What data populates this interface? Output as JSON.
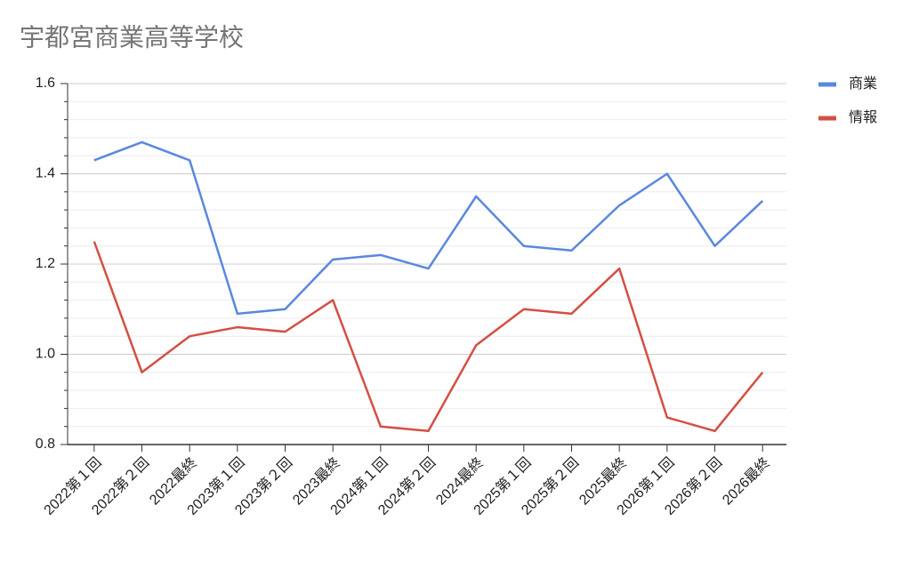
{
  "chart_data": {
    "type": "line",
    "title": "宇都宮商業高等学校",
    "categories": [
      "2022第１回",
      "2022第２回",
      "2022最終",
      "2023第１回",
      "2023第２回",
      "2023最終",
      "2024第１回",
      "2024第２回",
      "2024最終",
      "2025第１回",
      "2025第２回",
      "2025最終",
      "2026第１回",
      "2026第２回",
      "2026最終"
    ],
    "series": [
      {
        "name": "商業",
        "color": "#5a87e0",
        "values": [
          1.43,
          1.47,
          1.43,
          1.09,
          1.1,
          1.21,
          1.22,
          1.19,
          1.35,
          1.24,
          1.23,
          1.33,
          1.4,
          1.24,
          1.34
        ]
      },
      {
        "name": "情報",
        "color": "#d44f43",
        "values": [
          1.25,
          0.96,
          1.04,
          1.06,
          1.05,
          1.12,
          0.84,
          0.83,
          1.02,
          1.1,
          1.09,
          1.19,
          0.86,
          0.83,
          0.96
        ]
      }
    ],
    "ylim": [
      0.8,
      1.6
    ],
    "yticks": [
      0.8,
      {
        "value": 1.0,
        "label": "1.0"
      },
      1.2,
      1.4,
      1.6
    ],
    "minor_yticks": [
      0.84,
      0.88,
      0.92,
      0.96,
      1.04,
      1.08,
      1.12,
      1.16,
      1.24,
      1.28,
      1.32,
      1.36,
      1.44,
      1.48,
      1.52,
      1.56
    ],
    "grid": true,
    "legend": "right"
  }
}
